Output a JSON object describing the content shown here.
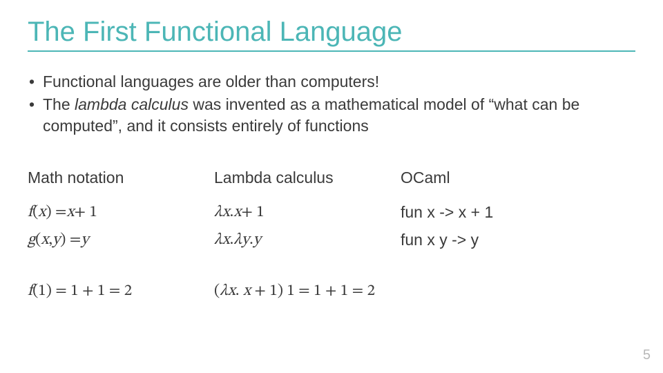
{
  "title": "The First Functional Language",
  "title_color": "#4cb6b6",
  "rule_color": "#4cb6b6",
  "body_color": "#3a3a3a",
  "background_color": "#ffffff",
  "title_fontsize": 40,
  "body_fontsize": 23,
  "bullets": {
    "b1": "Functional languages are older than computers!",
    "b2_pre": "The ",
    "b2_em": "lambda calculus",
    "b2_post": " was invented as a mathematical model of “what can be computed”, and it consists entirely of functions"
  },
  "columns": {
    "math": {
      "head": "Math notation"
    },
    "lambda": {
      "head": "Lambda calculus"
    },
    "ocaml": {
      "head": "OCaml",
      "r1": "fun x -> x + 1",
      "r2": "fun x y -> y"
    }
  },
  "math_rows": {
    "r1": {
      "f": "f",
      "lp": "(",
      "x": "x",
      "rp": ") = ",
      "xx": "x",
      "tail": " + 1"
    },
    "r2": {
      "g": "g",
      "lp": "(",
      "x": "x",
      "c": ", ",
      "y": "y",
      "rp": ") = ",
      "yy": "y"
    }
  },
  "lambda_rows": {
    "r1": {
      "lam": "λ",
      "x": "x",
      "dot": ". ",
      "xx": "x",
      "tail": " + 1"
    },
    "r2": {
      "lam1": "λ",
      "x": "x",
      "dot1": ". ",
      "lam2": "λ",
      "y": "y",
      "dot2": ". ",
      "yy": "y"
    }
  },
  "bottom": {
    "left": {
      "f": "f",
      "lp": "(1) = 1 + 1 = 2"
    },
    "right": {
      "lp": "(",
      "lam": "λ",
      "x": "x",
      "dot": ". ",
      "xx": "x",
      "tail": " + 1) 1 = 1 + 1 = 2"
    }
  },
  "page_number": "5",
  "pagenum_color": "#b8b8b8"
}
